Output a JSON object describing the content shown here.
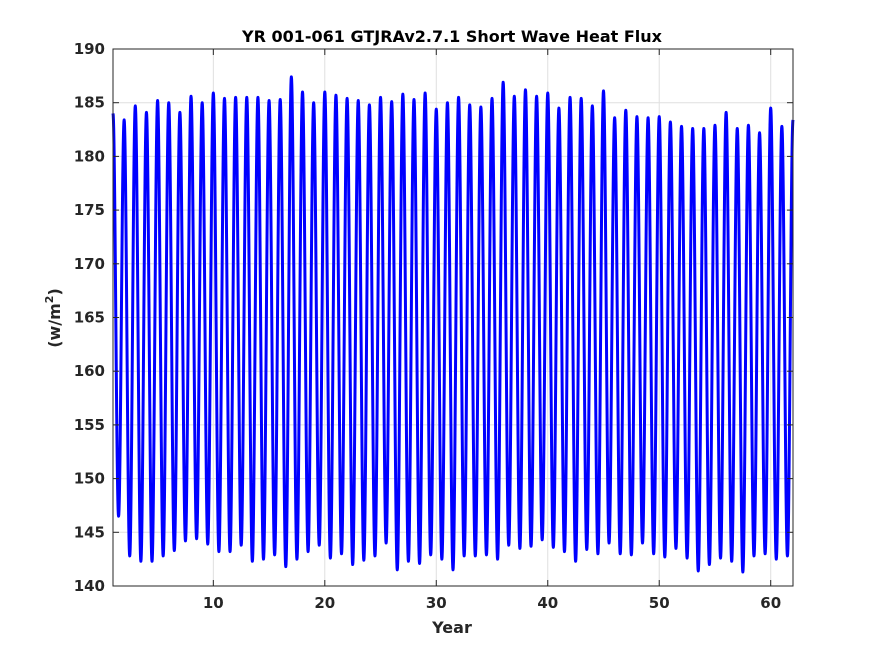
{
  "chart_data": {
    "type": "line",
    "title": "YR 001-061 GTJRAv2.7.1 Short Wave Heat Flux",
    "xlabel": "Year",
    "ylabel": "(w/m",
    "ylabel_sup": "2",
    "ylabel_close": ")",
    "xlim": [
      1,
      62
    ],
    "ylim": [
      140,
      190
    ],
    "xticks": [
      10,
      20,
      30,
      40,
      50,
      60
    ],
    "yticks": [
      140,
      145,
      150,
      155,
      160,
      165,
      170,
      175,
      180,
      185,
      190
    ],
    "grid": true,
    "line_color": "#0000ff",
    "series": [
      {
        "annual_cycle": "one maximum and one minimum per year",
        "annual_max": [
          184.0,
          183.4,
          184.7,
          184.1,
          185.2,
          185.0,
          184.1,
          185.6,
          185.0,
          185.9,
          185.4,
          185.5,
          185.5,
          185.5,
          185.2,
          185.3,
          187.4,
          186.0,
          185.0,
          186.0,
          185.7,
          185.4,
          185.2,
          184.8,
          185.5,
          185.1,
          185.8,
          185.3,
          185.9,
          184.4,
          185.0,
          185.5,
          184.8,
          184.6,
          185.4,
          186.9,
          185.6,
          186.2,
          185.6,
          185.9,
          184.5,
          185.5,
          185.4,
          184.7,
          186.1,
          183.6,
          184.3,
          183.7,
          183.6,
          183.7,
          183.2,
          182.8,
          182.6,
          182.6,
          182.9,
          184.1,
          182.6,
          182.9,
          182.2,
          184.5,
          182.8,
          183.4
        ],
        "annual_min": [
          146.5,
          142.8,
          142.3,
          142.3,
          142.8,
          143.3,
          144.2,
          144.4,
          143.9,
          143.2,
          143.2,
          143.8,
          142.3,
          142.5,
          142.9,
          141.8,
          142.5,
          143.2,
          143.8,
          142.6,
          143.0,
          142.0,
          142.4,
          142.8,
          144.0,
          141.5,
          142.3,
          142.1,
          142.9,
          142.5,
          141.5,
          142.8,
          142.8,
          142.9,
          142.5,
          143.8,
          143.5,
          143.7,
          144.3,
          143.6,
          143.2,
          142.3,
          143.4,
          143.0,
          144.0,
          143.0,
          142.9,
          144.0,
          143.0,
          142.7,
          143.5,
          142.6,
          141.4,
          142.0,
          142.6,
          142.3,
          141.3,
          142.8,
          143.0,
          142.5,
          142.8,
          143.2
        ]
      }
    ]
  }
}
